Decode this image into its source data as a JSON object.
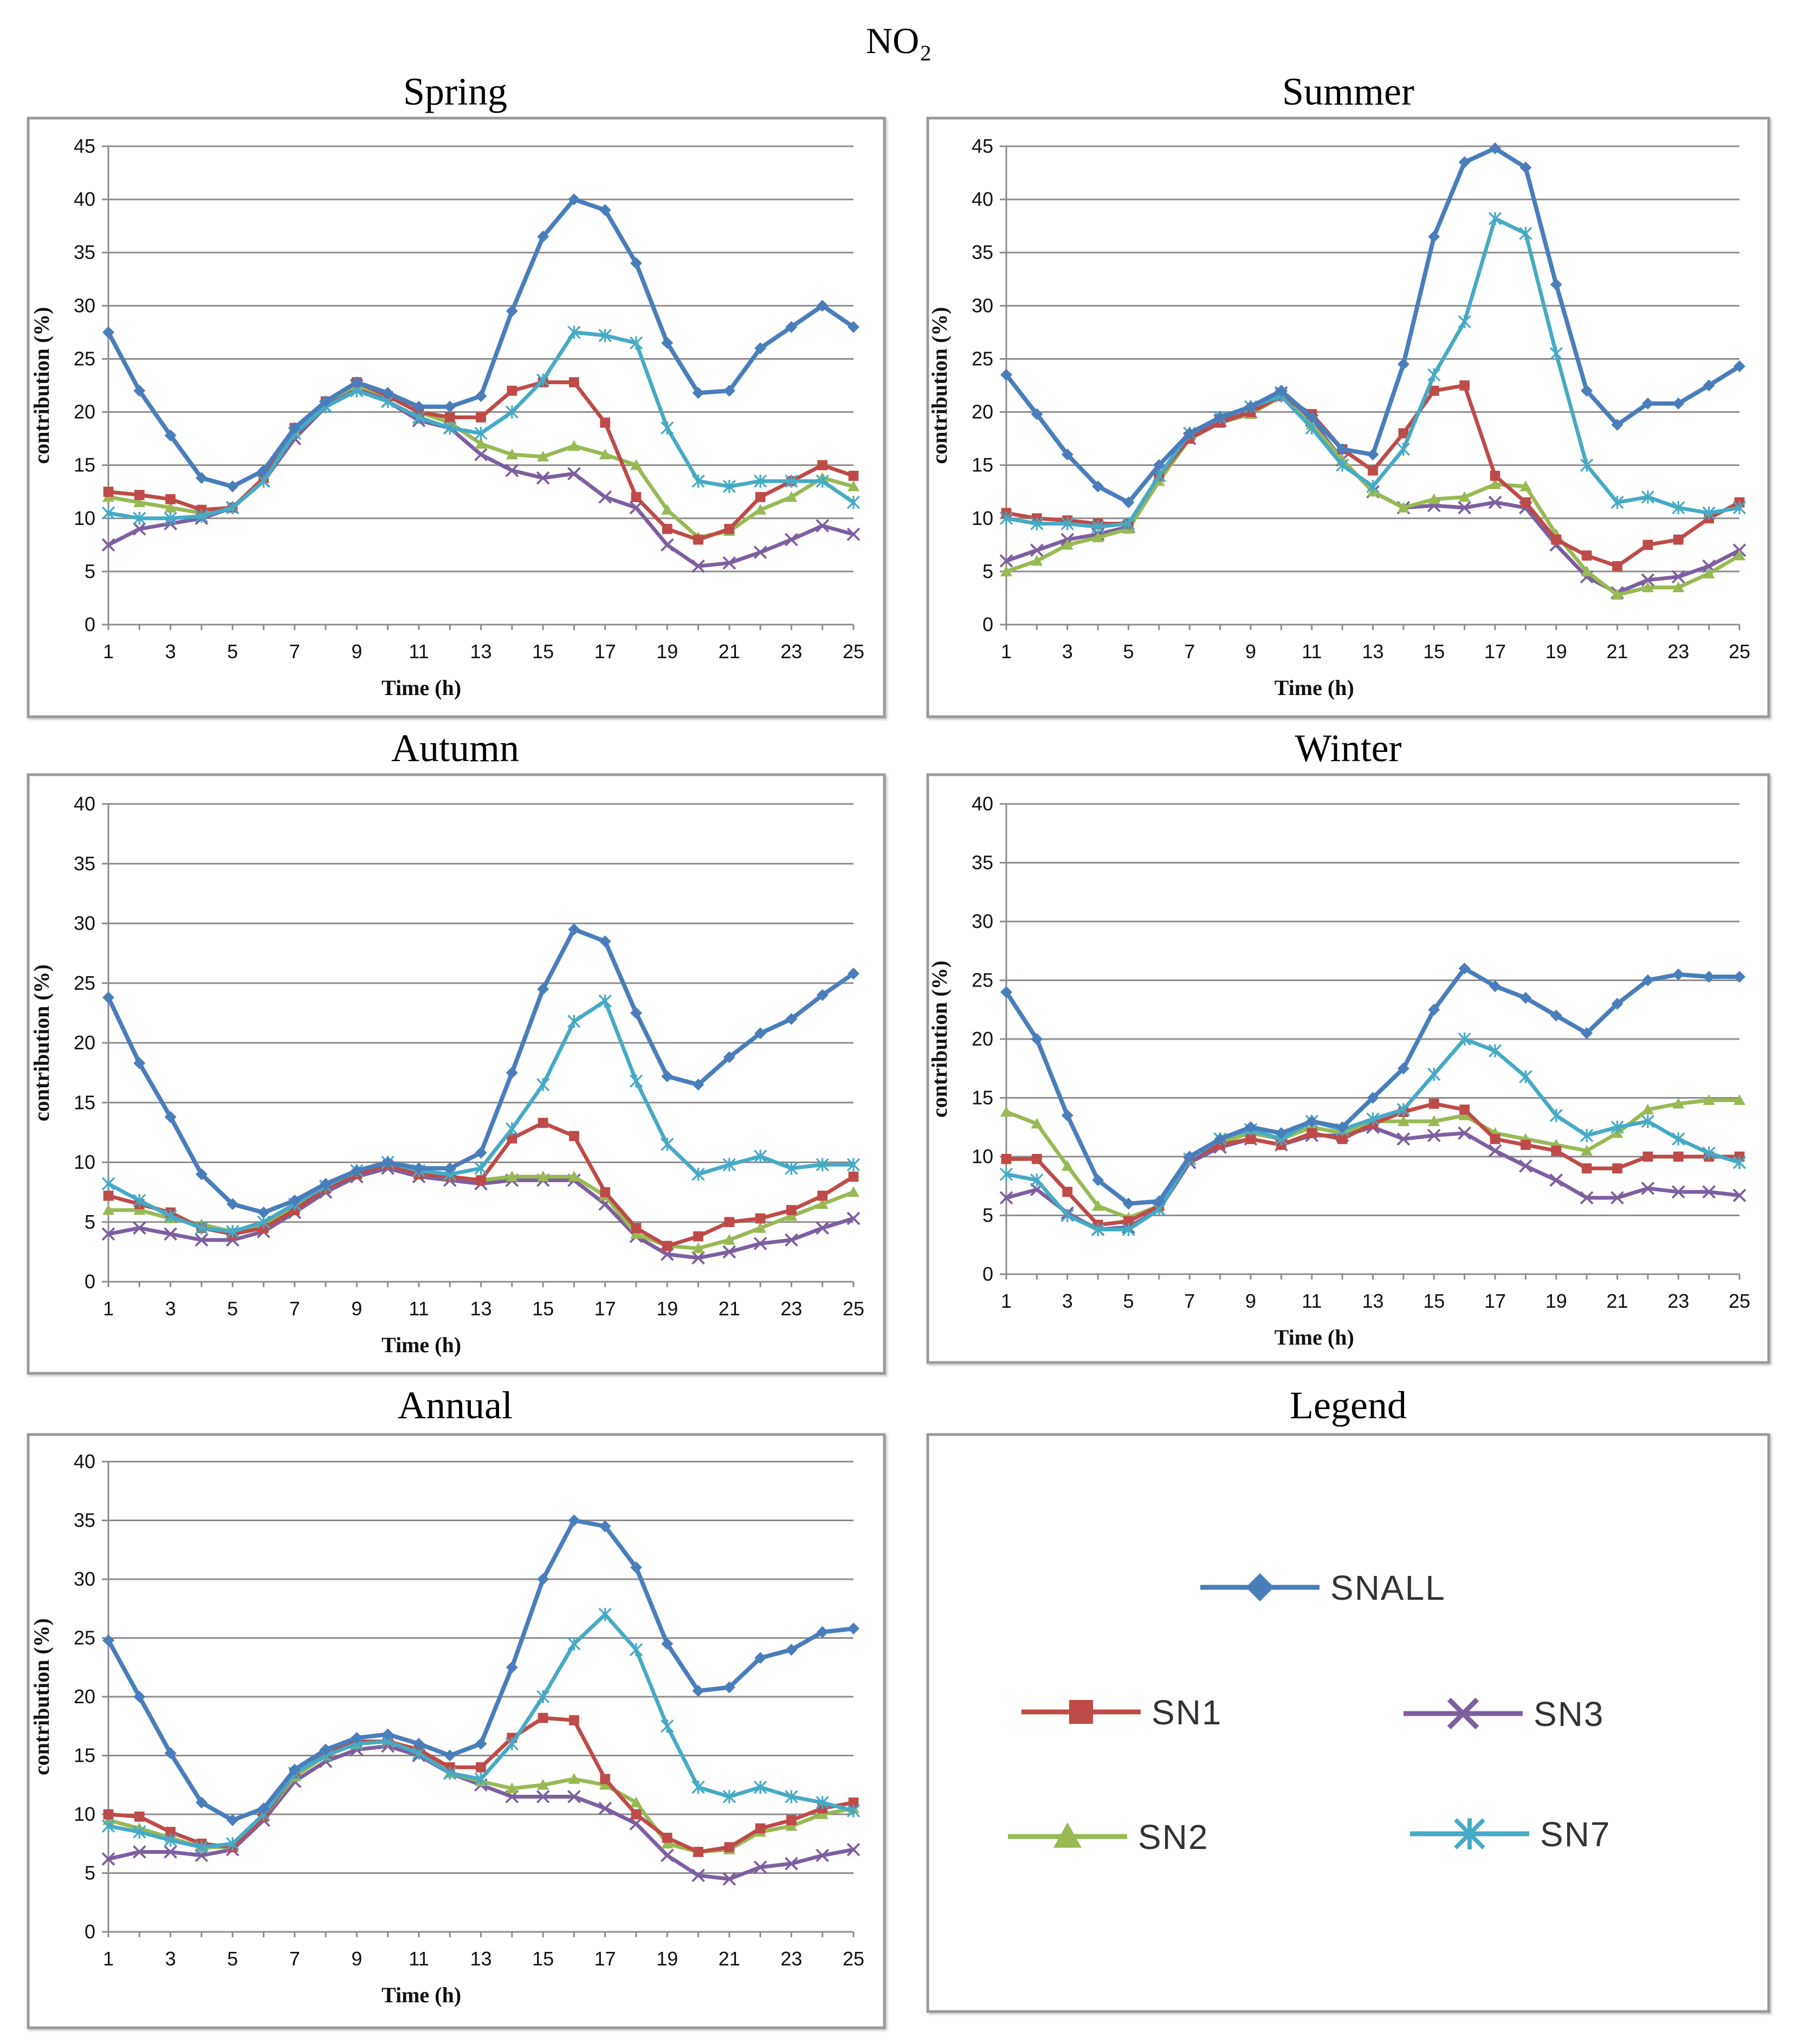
{
  "figure_title": "NO₂",
  "legend_title": "Legend",
  "colors": {
    "SNALL": "#4a7ebb",
    "SN1": "#be4b48",
    "SN2": "#98b954",
    "SN3": "#7d5fa0",
    "SN7": "#46aac5"
  },
  "legend": [
    {
      "name": "SNALL",
      "marker": "diamond"
    },
    {
      "name": "SN1",
      "marker": "square"
    },
    {
      "name": "SN3",
      "marker": "x"
    },
    {
      "name": "SN2",
      "marker": "triangle"
    },
    {
      "name": "SN7",
      "marker": "star"
    }
  ],
  "chart_data": [
    {
      "type": "line",
      "title": "Spring",
      "xlabel": "Time (h)",
      "ylabel": "contribution (%)",
      "ylim": [
        0,
        45
      ],
      "yticks": [
        0,
        5,
        10,
        15,
        20,
        25,
        30,
        35,
        40,
        45
      ],
      "xticks": [
        1,
        3,
        5,
        7,
        9,
        11,
        13,
        15,
        17,
        19,
        21,
        23,
        25
      ],
      "grid": true,
      "x": [
        1,
        2,
        3,
        4,
        5,
        6,
        7,
        8,
        9,
        10,
        11,
        12,
        13,
        14,
        15,
        16,
        17,
        18,
        19,
        20,
        21,
        22,
        23,
        24,
        25
      ],
      "series": [
        {
          "name": "SNALL",
          "values": [
            27.5,
            22,
            17.8,
            13.8,
            13,
            14.5,
            18.5,
            21,
            22.8,
            21.8,
            20.5,
            20.5,
            21.5,
            29.5,
            36.5,
            40,
            39,
            34,
            26.5,
            21.8,
            22,
            26,
            28,
            30,
            28
          ]
        },
        {
          "name": "SN1",
          "values": [
            12.5,
            12.2,
            11.8,
            10.8,
            11,
            13.8,
            18.5,
            21,
            22.8,
            21.5,
            20,
            19.5,
            19.5,
            22,
            22.8,
            22.8,
            19,
            12,
            9,
            8,
            9,
            12,
            13.5,
            15,
            14
          ]
        },
        {
          "name": "SN2",
          "values": [
            12,
            11.5,
            11,
            10.5,
            11,
            13.8,
            18.2,
            21,
            22.5,
            21.5,
            20,
            19,
            17,
            16,
            15.8,
            16.8,
            16,
            15,
            10.8,
            8.2,
            8.8,
            10.8,
            12,
            13.8,
            13
          ]
        },
        {
          "name": "SN3",
          "values": [
            7.5,
            9,
            9.5,
            10,
            11,
            13.5,
            17.5,
            20.5,
            22.5,
            21,
            19.2,
            18.5,
            16,
            14.5,
            13.8,
            14.2,
            12,
            11,
            7.5,
            5.5,
            5.8,
            6.8,
            8,
            9.3,
            8.5
          ]
        },
        {
          "name": "SN7",
          "values": [
            10.5,
            10,
            10,
            10.2,
            11,
            13.5,
            18,
            20.5,
            22,
            21,
            19.5,
            18.5,
            18,
            20,
            23,
            27.5,
            27.2,
            26.5,
            18.5,
            13.5,
            13,
            13.5,
            13.5,
            13.5,
            11.5
          ]
        }
      ]
    },
    {
      "type": "line",
      "title": "Summer",
      "xlabel": "Time (h)",
      "ylabel": "contribution (%)",
      "ylim": [
        0,
        45
      ],
      "yticks": [
        0,
        5,
        10,
        15,
        20,
        25,
        30,
        35,
        40,
        45
      ],
      "xticks": [
        1,
        3,
        5,
        7,
        9,
        11,
        13,
        15,
        17,
        19,
        21,
        23,
        25
      ],
      "grid": true,
      "x": [
        1,
        2,
        3,
        4,
        5,
        6,
        7,
        8,
        9,
        10,
        11,
        12,
        13,
        14,
        15,
        16,
        17,
        18,
        19,
        20,
        21,
        22,
        23,
        24,
        25
      ],
      "series": [
        {
          "name": "SNALL",
          "values": [
            23.5,
            19.8,
            16,
            13,
            11.5,
            15,
            18,
            19.5,
            20.5,
            22,
            19.5,
            16.5,
            16,
            24.5,
            36.5,
            43.5,
            44.8,
            43,
            32,
            22,
            18.8,
            20.8,
            20.8,
            22.5,
            24.3
          ]
        },
        {
          "name": "SN1",
          "values": [
            10.5,
            10,
            9.8,
            9.5,
            9.5,
            14,
            17.5,
            19,
            20,
            21.5,
            19.8,
            16.5,
            14.5,
            18,
            22,
            22.5,
            14,
            11.5,
            8,
            6.5,
            5.5,
            7.5,
            8,
            10,
            11.5
          ]
        },
        {
          "name": "SN2",
          "values": [
            5,
            6,
            7.5,
            8.2,
            9,
            13.5,
            17.5,
            19,
            19.8,
            21.5,
            18.8,
            15.5,
            12.5,
            11,
            11.8,
            12,
            13.2,
            13,
            8.5,
            5,
            2.8,
            3.5,
            3.5,
            4.8,
            6.5
          ]
        },
        {
          "name": "SN3",
          "values": [
            6,
            7,
            8,
            8.5,
            9.2,
            14,
            17.5,
            19.2,
            20,
            21.8,
            19.2,
            15.5,
            12.5,
            11,
            11.2,
            11,
            11.5,
            11,
            7.5,
            4.5,
            3,
            4.2,
            4.5,
            5.5,
            7
          ]
        },
        {
          "name": "SN7",
          "values": [
            10,
            9.5,
            9.5,
            9.2,
            9.5,
            14,
            18,
            19.5,
            20.5,
            21.5,
            18.5,
            15,
            13,
            16.5,
            23.5,
            28.5,
            38.2,
            36.8,
            25.5,
            15,
            11.5,
            12,
            11,
            10.5,
            11
          ]
        }
      ]
    },
    {
      "type": "line",
      "title": "Autumn",
      "xlabel": "Time (h)",
      "ylabel": "contribution (%)",
      "ylim": [
        0,
        40
      ],
      "yticks": [
        0,
        5,
        10,
        15,
        20,
        25,
        30,
        35,
        40
      ],
      "xticks": [
        1,
        3,
        5,
        7,
        9,
        11,
        13,
        15,
        17,
        19,
        21,
        23,
        25
      ],
      "grid": true,
      "x": [
        1,
        2,
        3,
        4,
        5,
        6,
        7,
        8,
        9,
        10,
        11,
        12,
        13,
        14,
        15,
        16,
        17,
        18,
        19,
        20,
        21,
        22,
        23,
        24,
        25
      ],
      "series": [
        {
          "name": "SNALL",
          "values": [
            23.8,
            18.3,
            13.8,
            9,
            6.5,
            5.8,
            6.8,
            8.2,
            9.3,
            10,
            9.5,
            9.5,
            10.8,
            17.5,
            24.5,
            29.5,
            28.5,
            22.5,
            17.2,
            16.5,
            18.8,
            20.8,
            22,
            24,
            25.8
          ]
        },
        {
          "name": "SN1",
          "values": [
            7.2,
            6.5,
            5.8,
            4.5,
            4,
            4.5,
            6,
            7.8,
            9,
            9.8,
            9,
            8.8,
            8.5,
            12,
            13.3,
            12.2,
            7.5,
            4.5,
            3,
            3.8,
            5,
            5.3,
            6,
            7.2,
            8.8
          ]
        },
        {
          "name": "SN2",
          "values": [
            6,
            6,
            5.3,
            4.8,
            4.2,
            4.8,
            6.2,
            8,
            9,
            9.8,
            9,
            8.8,
            8.5,
            8.8,
            8.8,
            8.8,
            7.2,
            4,
            3,
            2.8,
            3.5,
            4.5,
            5.5,
            6.5,
            7.5
          ]
        },
        {
          "name": "SN3",
          "values": [
            4,
            4.5,
            4,
            3.5,
            3.5,
            4.2,
            5.8,
            7.5,
            8.8,
            9.5,
            8.8,
            8.5,
            8.2,
            8.5,
            8.5,
            8.5,
            6.5,
            3.8,
            2.3,
            2,
            2.5,
            3.2,
            3.5,
            4.5,
            5.3
          ]
        },
        {
          "name": "SN7",
          "values": [
            8.2,
            6.8,
            5.5,
            4.5,
            4.2,
            5,
            6.5,
            8,
            9.3,
            10,
            9.3,
            9,
            9.5,
            12.8,
            16.5,
            21.8,
            23.5,
            16.8,
            11.5,
            9,
            9.8,
            10.5,
            9.5,
            9.8,
            9.8
          ]
        }
      ]
    },
    {
      "type": "line",
      "title": "Winter",
      "xlabel": "Time (h)",
      "ylabel": "contribution (%)",
      "ylim": [
        0,
        40
      ],
      "yticks": [
        0,
        5,
        10,
        15,
        20,
        25,
        30,
        35,
        40
      ],
      "xticks": [
        1,
        3,
        5,
        7,
        9,
        11,
        13,
        15,
        17,
        19,
        21,
        23,
        25
      ],
      "grid": true,
      "x": [
        1,
        2,
        3,
        4,
        5,
        6,
        7,
        8,
        9,
        10,
        11,
        12,
        13,
        14,
        15,
        16,
        17,
        18,
        19,
        20,
        21,
        22,
        23,
        24,
        25
      ],
      "series": [
        {
          "name": "SNALL",
          "values": [
            24,
            20,
            13.5,
            8,
            6,
            6.2,
            10,
            11.5,
            12.5,
            12,
            13,
            12.5,
            15,
            17.5,
            22.5,
            26,
            24.5,
            23.5,
            22,
            20.5,
            23,
            25,
            25.5,
            25.3,
            25.3
          ]
        },
        {
          "name": "SN1",
          "values": [
            9.8,
            9.8,
            7,
            4.2,
            4.5,
            5.8,
            9.8,
            11,
            11.5,
            11,
            12,
            11.5,
            12.8,
            13.8,
            14.5,
            14,
            11.5,
            11,
            10.5,
            9,
            9,
            10,
            10,
            10,
            10
          ]
        },
        {
          "name": "SN2",
          "values": [
            13.8,
            12.8,
            9.2,
            5.8,
            4.8,
            5.8,
            10,
            11.2,
            12,
            11.5,
            12.5,
            12,
            13,
            13,
            13,
            13.5,
            12,
            11.5,
            11,
            10.5,
            12,
            14,
            14.5,
            14.8,
            14.8
          ]
        },
        {
          "name": "SN3",
          "values": [
            6.5,
            7.2,
            5.2,
            3.8,
            4,
            5.5,
            9.5,
            10.8,
            11.5,
            11,
            11.8,
            11.8,
            12.5,
            11.5,
            11.8,
            12,
            10.5,
            9.2,
            8,
            6.5,
            6.5,
            7.3,
            7,
            7,
            6.7
          ]
        },
        {
          "name": "SN7",
          "values": [
            8.5,
            8,
            5,
            3.8,
            3.8,
            5.5,
            9.8,
            11.5,
            12.3,
            11.5,
            13,
            12.3,
            13.2,
            14,
            17,
            20,
            19,
            16.8,
            13.5,
            11.8,
            12.5,
            13,
            11.5,
            10.3,
            9.5
          ]
        }
      ]
    },
    {
      "type": "line",
      "title": "Annual",
      "xlabel": "Time (h)",
      "ylabel": "contribution (%)",
      "ylim": [
        0,
        40
      ],
      "yticks": [
        0,
        5,
        10,
        15,
        20,
        25,
        30,
        35,
        40
      ],
      "xticks": [
        1,
        3,
        5,
        7,
        9,
        11,
        13,
        15,
        17,
        19,
        21,
        23,
        25
      ],
      "grid": true,
      "x": [
        1,
        2,
        3,
        4,
        5,
        6,
        7,
        8,
        9,
        10,
        11,
        12,
        13,
        14,
        15,
        16,
        17,
        18,
        19,
        20,
        21,
        22,
        23,
        24,
        25
      ],
      "series": [
        {
          "name": "SNALL",
          "values": [
            24.8,
            20,
            15.2,
            11,
            9.5,
            10.5,
            13.8,
            15.5,
            16.5,
            16.8,
            16,
            15,
            16,
            22.5,
            30,
            35,
            34.5,
            31,
            24.5,
            20.5,
            20.8,
            23.3,
            24,
            25.5,
            25.8
          ]
        },
        {
          "name": "SN1",
          "values": [
            10,
            9.8,
            8.5,
            7.5,
            7.2,
            9.8,
            13.5,
            15.2,
            16.2,
            16.2,
            15.5,
            14,
            14,
            16.5,
            18.2,
            18,
            13,
            10,
            8,
            6.8,
            7.2,
            8.8,
            9.5,
            10.5,
            11
          ]
        },
        {
          "name": "SN2",
          "values": [
            9.5,
            8.8,
            8,
            7.2,
            7.2,
            9.8,
            13.2,
            15,
            16,
            16.2,
            15.5,
            13.5,
            12.8,
            12.2,
            12.5,
            13,
            12.5,
            11,
            7.5,
            6.8,
            7,
            8.5,
            9,
            10,
            10.5
          ]
        },
        {
          "name": "SN3",
          "values": [
            6.2,
            6.8,
            6.8,
            6.5,
            7,
            9.5,
            12.8,
            14.5,
            15.5,
            15.8,
            15,
            13.5,
            12.5,
            11.5,
            11.5,
            11.5,
            10.5,
            9.2,
            6.5,
            4.8,
            4.5,
            5.5,
            5.8,
            6.5,
            7
          ]
        },
        {
          "name": "SN7",
          "values": [
            9,
            8.5,
            7.8,
            7.2,
            7.5,
            10,
            13.5,
            15,
            16,
            16.2,
            15.2,
            13.5,
            13,
            16,
            20,
            24.5,
            27,
            24,
            17.5,
            12.3,
            11.5,
            12.3,
            11.5,
            11,
            10.3
          ]
        }
      ]
    }
  ]
}
